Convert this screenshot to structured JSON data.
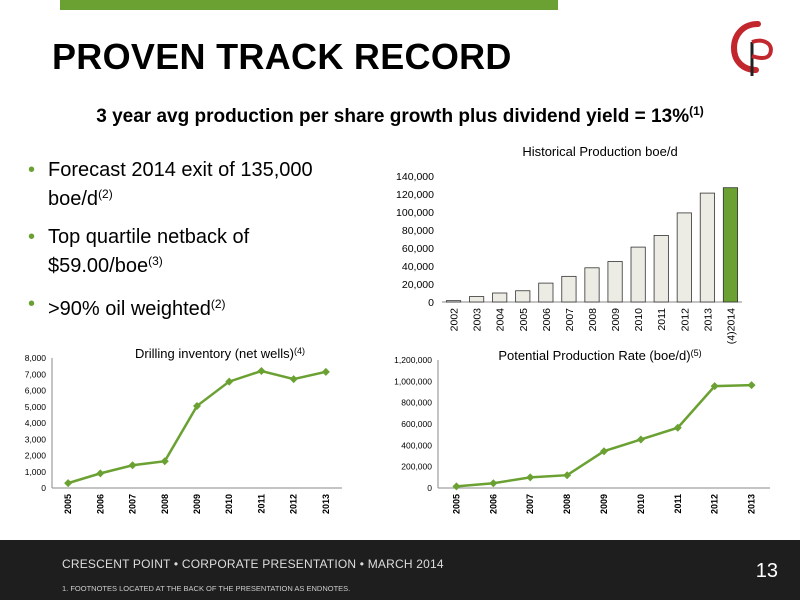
{
  "slide": {
    "title": "PROVEN TRACK RECORD",
    "subtitle": "3 year avg production per share growth plus dividend yield = 13%",
    "subtitle_sup": "(1)"
  },
  "bullets": [
    {
      "text": "Forecast 2014 exit of 135,000 boe/d",
      "sup": "(2)"
    },
    {
      "text": "Top quartile netback of $59.00/boe",
      "sup": "(3)"
    },
    {
      "text": ">90% oil weighted",
      "sup": "(2)"
    }
  ],
  "chart_data": [
    {
      "type": "bar",
      "title": "Historical Production boe/d",
      "categories": [
        "2002",
        "2003",
        "2004",
        "2005",
        "2006",
        "2007",
        "2008",
        "2009",
        "2010",
        "2011",
        "2012",
        "2013",
        "2014"
      ],
      "category_prefix": {
        "2014": "(4)"
      },
      "values": [
        1500,
        6000,
        10000,
        12500,
        21000,
        28500,
        38000,
        45000,
        61000,
        74000,
        99000,
        121000,
        127000
      ],
      "ylim": [
        0,
        140000
      ],
      "yticks": [
        0,
        20000,
        40000,
        60000,
        80000,
        100000,
        120000,
        140000
      ],
      "colors": {
        "bar": "#ecebe4",
        "highlight": "#6aa132",
        "highlight_category": "2014"
      }
    },
    {
      "type": "line",
      "title": "Drilling inventory (net wells)",
      "title_sup": "(4)",
      "categories": [
        "2005",
        "2006",
        "2007",
        "2008",
        "2009",
        "2010",
        "2011",
        "2012",
        "2013"
      ],
      "values": [
        300,
        900,
        1400,
        1650,
        5050,
        6550,
        7200,
        6700,
        7150
      ],
      "ylim": [
        0,
        8000
      ],
      "yticks": [
        0,
        1000,
        2000,
        3000,
        4000,
        5000,
        6000,
        7000,
        8000
      ],
      "colors": {
        "line": "#6aa132"
      }
    },
    {
      "type": "line",
      "title": "Potential Production Rate (boe/d)",
      "title_sup": "(5)",
      "categories": [
        "2005",
        "2006",
        "2007",
        "2008",
        "2009",
        "2010",
        "2011",
        "2012",
        "2013"
      ],
      "values": [
        15000,
        45000,
        100000,
        120000,
        345000,
        455000,
        565000,
        955000,
        965000
      ],
      "ylim": [
        0,
        1200000
      ],
      "yticks": [
        0,
        200000,
        400000,
        600000,
        800000,
        1000000,
        1200000
      ],
      "colors": {
        "line": "#6aa132"
      }
    }
  ],
  "footer": {
    "text": "CRESCENT POINT  •  CORPORATE PRESENTATION  •  MARCH 2014",
    "footnote": "1.      FOOTNOTES LOCATED AT THE BACK OF THE PRESENTATION AS ENDNOTES.",
    "page_number": "13"
  }
}
